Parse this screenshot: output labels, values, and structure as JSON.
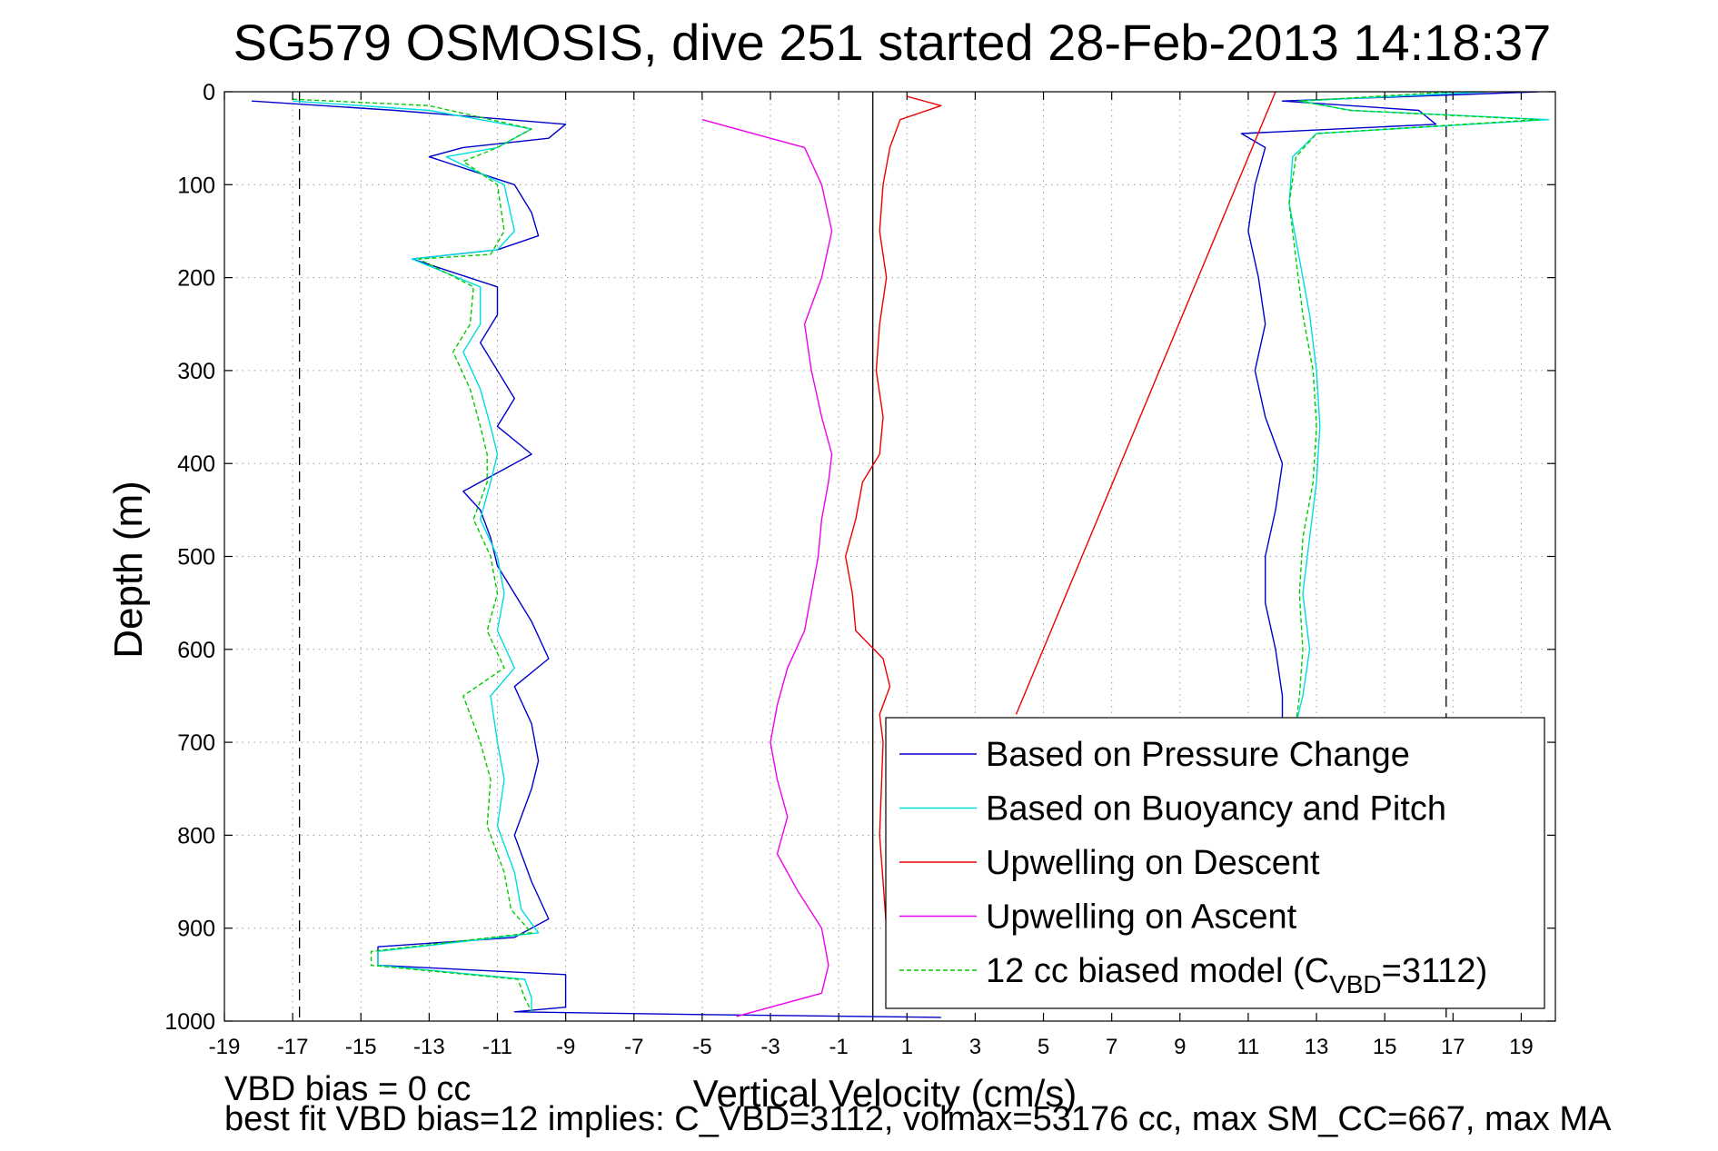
{
  "chart_data": {
    "type": "line",
    "title": "SG579 OSMOSIS, dive 251 started 28-Feb-2013 14:18:37",
    "xlabel": "Vertical Velocity (cm/s)",
    "ylabel": "Depth (m)",
    "xlim": [
      -19,
      20
    ],
    "ylim": [
      0,
      1000
    ],
    "y_reversed": true,
    "grid": true,
    "xticks": [
      -19,
      -17,
      -15,
      -13,
      -11,
      -9,
      -7,
      -5,
      -3,
      -1,
      1,
      3,
      5,
      7,
      9,
      11,
      13,
      15,
      17,
      19
    ],
    "yticks": [
      0,
      100,
      200,
      300,
      400,
      500,
      600,
      700,
      800,
      900,
      1000
    ],
    "legend_position": "bottom-right",
    "vertical_reference_lines": [
      {
        "x": -16.8,
        "style": "dashed",
        "color": "#000000"
      },
      {
        "x": 16.8,
        "style": "dashed",
        "color": "#000000"
      },
      {
        "x": 0,
        "style": "solid",
        "color": "#000000"
      }
    ],
    "series": [
      {
        "name": "Based on Pressure Change",
        "color": "#0000cc",
        "style": "solid",
        "points": [
          [
            -18.2,
            10
          ],
          [
            -14,
            20
          ],
          [
            -9,
            35
          ],
          [
            -9.5,
            50
          ],
          [
            -12,
            60
          ],
          [
            -13,
            70
          ],
          [
            -10.5,
            100
          ],
          [
            -10,
            130
          ],
          [
            -9.8,
            155
          ],
          [
            -11,
            170
          ],
          [
            -13.5,
            180
          ],
          [
            -11,
            210
          ],
          [
            -11,
            240
          ],
          [
            -11.5,
            270
          ],
          [
            -11,
            300
          ],
          [
            -10.5,
            330
          ],
          [
            -11,
            360
          ],
          [
            -10,
            390
          ],
          [
            -12,
            430
          ],
          [
            -11.5,
            450
          ],
          [
            -11.2,
            480
          ],
          [
            -11,
            510
          ],
          [
            -10.5,
            540
          ],
          [
            -10,
            570
          ],
          [
            -9.5,
            610
          ],
          [
            -10.5,
            640
          ],
          [
            -10,
            680
          ],
          [
            -9.8,
            720
          ],
          [
            -10,
            750
          ],
          [
            -10.5,
            800
          ],
          [
            -10,
            850
          ],
          [
            -9.5,
            890
          ],
          [
            -10.5,
            910
          ],
          [
            -14.5,
            920
          ],
          [
            -14.5,
            940
          ],
          [
            -9,
            950
          ],
          [
            -9,
            970
          ],
          [
            -9,
            985
          ],
          [
            -10.5,
            990
          ],
          [
            -5,
            993
          ],
          [
            2,
            996
          ]
        ]
      },
      {
        "name": "Based on Buoyancy and Pitch",
        "color": "#00dddd",
        "style": "solid",
        "points": [
          [
            -17,
            10
          ],
          [
            -13,
            20
          ],
          [
            -10,
            40
          ],
          [
            -11,
            60
          ],
          [
            -12.5,
            70
          ],
          [
            -10.8,
            100
          ],
          [
            -10.5,
            150
          ],
          [
            -11,
            170
          ],
          [
            -13.5,
            180
          ],
          [
            -11.5,
            210
          ],
          [
            -11.5,
            250
          ],
          [
            -12,
            280
          ],
          [
            -11.5,
            320
          ],
          [
            -11.2,
            360
          ],
          [
            -11,
            390
          ],
          [
            -11.2,
            420
          ],
          [
            -11.5,
            460
          ],
          [
            -11,
            500
          ],
          [
            -10.8,
            540
          ],
          [
            -11,
            580
          ],
          [
            -10.5,
            620
          ],
          [
            -11.2,
            650
          ],
          [
            -11,
            700
          ],
          [
            -10.8,
            740
          ],
          [
            -11,
            790
          ],
          [
            -10.5,
            840
          ],
          [
            -10.3,
            880
          ],
          [
            -9.8,
            905
          ],
          [
            -14.5,
            925
          ],
          [
            -14.5,
            940
          ],
          [
            -10.2,
            955
          ],
          [
            -10,
            975
          ],
          [
            -10,
            990
          ]
        ]
      },
      {
        "name": "Upwelling on Descent",
        "color": "#ee0000",
        "style": "solid",
        "points": [
          [
            1,
            5
          ],
          [
            2,
            15
          ],
          [
            0.8,
            30
          ],
          [
            0.5,
            60
          ],
          [
            0.3,
            100
          ],
          [
            0.2,
            150
          ],
          [
            0.4,
            200
          ],
          [
            0.2,
            250
          ],
          [
            0.1,
            300
          ],
          [
            0.3,
            350
          ],
          [
            0.2,
            390
          ],
          [
            -0.3,
            420
          ],
          [
            -0.5,
            460
          ],
          [
            -0.8,
            500
          ],
          [
            -0.6,
            540
          ],
          [
            -0.5,
            580
          ],
          [
            0.3,
            610
          ],
          [
            0.5,
            640
          ],
          [
            0.2,
            670
          ],
          [
            0.3,
            700
          ],
          [
            0.2,
            800
          ],
          [
            0.3,
            850
          ],
          [
            0.4,
            900
          ],
          [
            0.5,
            950
          ],
          [
            2,
            985
          ]
        ]
      },
      {
        "name": "Upwelling on Ascent",
        "color": "#ee00ee",
        "style": "solid",
        "points": [
          [
            -5,
            30
          ],
          [
            -2,
            60
          ],
          [
            -1.5,
            100
          ],
          [
            -1.2,
            150
          ],
          [
            -1.5,
            200
          ],
          [
            -2,
            250
          ],
          [
            -1.8,
            300
          ],
          [
            -1.5,
            350
          ],
          [
            -1.2,
            390
          ],
          [
            -1.3,
            420
          ],
          [
            -1.5,
            460
          ],
          [
            -1.6,
            500
          ],
          [
            -1.8,
            540
          ],
          [
            -2,
            580
          ],
          [
            -2.5,
            620
          ],
          [
            -2.8,
            660
          ],
          [
            -3,
            700
          ],
          [
            -2.8,
            740
          ],
          [
            -2.5,
            780
          ],
          [
            -2.8,
            820
          ],
          [
            -2.2,
            860
          ],
          [
            -1.5,
            900
          ],
          [
            -1.3,
            940
          ],
          [
            -1.5,
            970
          ],
          [
            -4,
            995
          ]
        ]
      },
      {
        "name": "12 cc biased model (C_VBD=3112)",
        "color": "#00cc00",
        "style": "dashed",
        "points": [
          [
            -17,
            8
          ],
          [
            -13,
            15
          ],
          [
            -10,
            40
          ],
          [
            -11,
            60
          ],
          [
            -12,
            75
          ],
          [
            -11,
            100
          ],
          [
            -10.8,
            150
          ],
          [
            -11.2,
            175
          ],
          [
            -13.3,
            180
          ],
          [
            -11.7,
            210
          ],
          [
            -11.8,
            250
          ],
          [
            -12.3,
            280
          ],
          [
            -11.8,
            320
          ],
          [
            -11.5,
            360
          ],
          [
            -11.3,
            390
          ],
          [
            -11.3,
            420
          ],
          [
            -11.7,
            460
          ],
          [
            -11.2,
            500
          ],
          [
            -11,
            540
          ],
          [
            -11.3,
            580
          ],
          [
            -10.8,
            620
          ],
          [
            -12,
            650
          ],
          [
            -11.5,
            700
          ],
          [
            -11.2,
            740
          ],
          [
            -11.3,
            790
          ],
          [
            -10.8,
            840
          ],
          [
            -10.6,
            880
          ],
          [
            -10,
            905
          ],
          [
            -14.7,
            925
          ],
          [
            -14.7,
            940
          ],
          [
            -10.4,
            955
          ],
          [
            -10.2,
            975
          ],
          [
            -10,
            990
          ]
        ]
      },
      {
        "name": "Based on Pressure Change",
        "color": "#0000cc",
        "style": "solid",
        "points": [
          [
            19.5,
            0
          ],
          [
            12,
            10
          ],
          [
            16,
            20
          ],
          [
            16.5,
            35
          ],
          [
            10.8,
            45
          ],
          [
            11.5,
            60
          ],
          [
            11.2,
            100
          ],
          [
            11,
            150
          ],
          [
            11.3,
            200
          ],
          [
            11.5,
            250
          ],
          [
            11.2,
            300
          ],
          [
            11.5,
            350
          ],
          [
            12,
            400
          ],
          [
            11.8,
            450
          ],
          [
            11.5,
            500
          ],
          [
            11.5,
            550
          ],
          [
            11.8,
            600
          ],
          [
            12,
            650
          ],
          [
            12,
            680
          ]
        ]
      },
      {
        "name": "Based on Buoyancy and Pitch",
        "color": "#00dddd",
        "style": "solid",
        "points": [
          [
            18,
            0
          ],
          [
            12.5,
            10
          ],
          [
            14,
            20
          ],
          [
            19.8,
            30
          ],
          [
            13,
            45
          ],
          [
            12.3,
            70
          ],
          [
            12.2,
            120
          ],
          [
            12.5,
            180
          ],
          [
            12.8,
            240
          ],
          [
            13,
            300
          ],
          [
            13.1,
            360
          ],
          [
            13,
            420
          ],
          [
            12.8,
            480
          ],
          [
            12.6,
            540
          ],
          [
            12.8,
            600
          ],
          [
            12.6,
            650
          ],
          [
            12.4,
            680
          ]
        ]
      },
      {
        "name": "12 cc biased model (C_VBD=3112)",
        "color": "#00cc00",
        "style": "dashed",
        "points": [
          [
            17,
            0
          ],
          [
            12.5,
            10
          ],
          [
            14,
            20
          ],
          [
            19.5,
            30
          ],
          [
            13,
            45
          ],
          [
            12.4,
            70
          ],
          [
            12.2,
            120
          ],
          [
            12.4,
            180
          ],
          [
            12.6,
            240
          ],
          [
            12.9,
            300
          ],
          [
            13,
            360
          ],
          [
            12.9,
            420
          ],
          [
            12.6,
            480
          ],
          [
            12.5,
            540
          ],
          [
            12.6,
            600
          ],
          [
            12.5,
            650
          ],
          [
            12.4,
            680
          ]
        ]
      },
      {
        "name": "Upwelling on Descent",
        "color": "#ee0000",
        "style": "solid",
        "points": [
          [
            11.8,
            0
          ],
          [
            4.2,
            670
          ]
        ]
      }
    ],
    "legend": [
      {
        "label": "Based on Pressure Change",
        "color": "#0000cc",
        "style": "solid"
      },
      {
        "label": "Based on Buoyancy and Pitch",
        "color": "#00dddd",
        "style": "solid"
      },
      {
        "label": "Upwelling on Descent",
        "color": "#ee0000",
        "style": "solid"
      },
      {
        "label": "Upwelling on Ascent",
        "color": "#ee00ee",
        "style": "solid"
      },
      {
        "label": "12 cc biased model (C",
        "label_sub": "VBD",
        "label_tail": "=3112)",
        "color": "#00cc00",
        "style": "dashed"
      }
    ]
  },
  "footnote": {
    "line1": "VBD bias = 0 cc",
    "line2": "best fit VBD bias=12 implies: C_VBD=3112, volmax=53176 cc, max SM_CC=667, max MA"
  }
}
